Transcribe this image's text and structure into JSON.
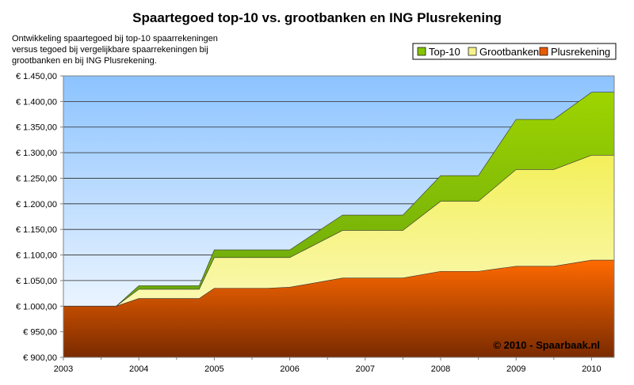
{
  "chart_data": {
    "type": "area",
    "stacked": true,
    "title": "Spaartegoed top-10 vs. grootbanken en ING Plusrekening",
    "subtitle_lines": [
      "Ontwikkeling spaartegoed bij top-10 spaarrekeningen",
      "versus tegoed bij vergelijkbare spaarrekeningen bij",
      "grootbanken en bij ING Plusrekening."
    ],
    "credit": "© 2010 - Spaarbaak.nl",
    "xlabel": "",
    "ylabel": "",
    "x_range": [
      2003,
      2010.3
    ],
    "x_ticks": [
      "2003",
      "2004",
      "2005",
      "2006",
      "2007",
      "2008",
      "2009",
      "2010"
    ],
    "ylim": [
      900,
      1450
    ],
    "y_ticks": [
      "€ 900,00",
      "€ 950,00",
      "€ 1.000,00",
      "€ 1.050,00",
      "€ 1.100,00",
      "€ 1.150,00",
      "€ 1.200,00",
      "€ 1.250,00",
      "€ 1.300,00",
      "€ 1.350,00",
      "€ 1.400,00",
      "€ 1.450,00"
    ],
    "y_tick_values": [
      900,
      950,
      1000,
      1050,
      1100,
      1150,
      1200,
      1250,
      1300,
      1350,
      1400,
      1450
    ],
    "grid": true,
    "legend_position": "top-right",
    "x": [
      2003,
      2003.7,
      2004,
      2004.8,
      2005,
      2005.7,
      2006,
      2006.7,
      2007,
      2007.5,
      2008,
      2008.5,
      2009,
      2009.5,
      2010,
      2010.3
    ],
    "series": [
      {
        "name": "Plusrekening",
        "color": "#e65c00",
        "values": [
          1000,
          1000,
          1015,
          1015,
          1035,
          1035,
          1037,
          1055,
          1055,
          1055,
          1068,
          1068,
          1078,
          1078,
          1090,
          1090
        ]
      },
      {
        "name": "Grootbanken",
        "color": "#f5f28a",
        "values": [
          1000,
          1000,
          1033,
          1033,
          1095,
          1095,
          1095,
          1148,
          1148,
          1148,
          1205,
          1205,
          1267,
          1267,
          1295,
          1295
        ]
      },
      {
        "name": "Top-10",
        "color": "#86c400",
        "values": [
          1000,
          1000,
          1040,
          1040,
          1110,
          1110,
          1110,
          1178,
          1178,
          1178,
          1255,
          1255,
          1365,
          1365,
          1418,
          1418
        ]
      }
    ],
    "legend": [
      "Top-10",
      "Grootbanken",
      "Plusrekening"
    ]
  }
}
